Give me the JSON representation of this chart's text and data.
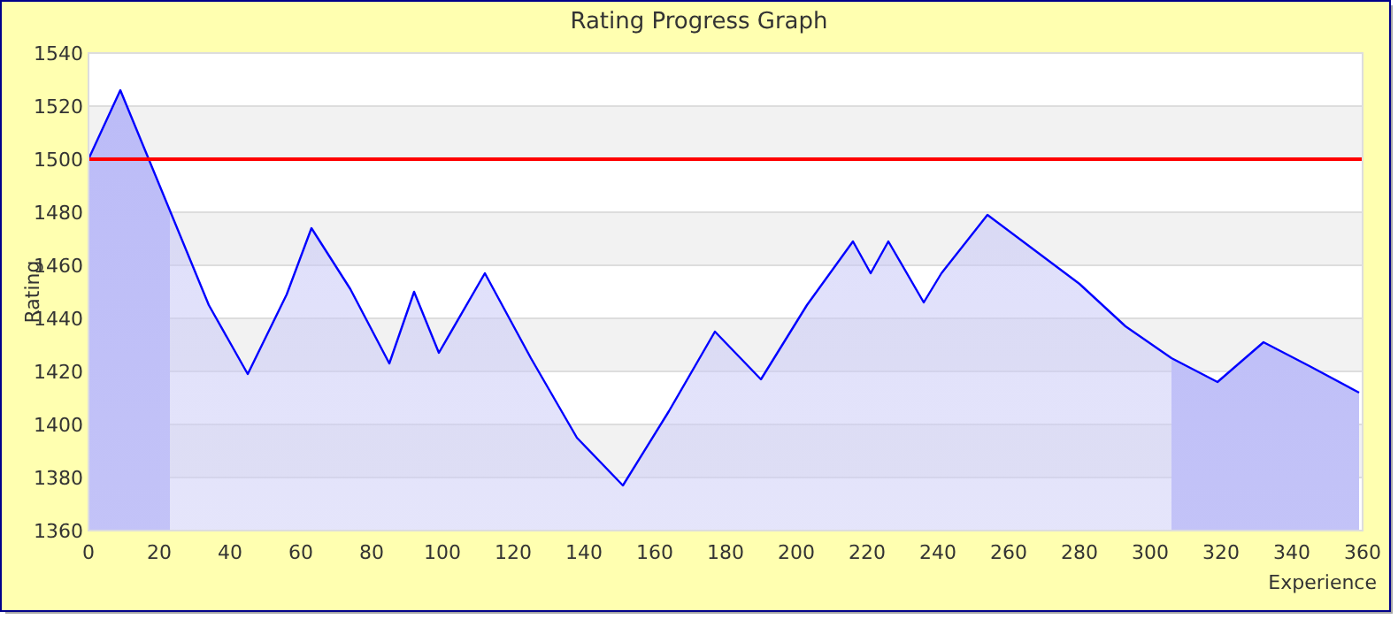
{
  "chart_data": {
    "type": "area",
    "title": "Rating Progress Graph",
    "xlabel": "Experience",
    "ylabel": "Rating",
    "x": [
      0,
      9,
      34,
      45,
      56,
      63,
      74,
      85,
      92,
      99,
      112,
      125,
      138,
      151,
      164,
      177,
      190,
      203,
      216,
      221,
      226,
      236,
      241,
      254,
      268,
      280,
      293,
      306,
      319,
      332,
      345,
      359
    ],
    "series": [
      {
        "color": "#0000ff",
        "values": [
          1500,
          1526,
          1445,
          1419,
          1449,
          1474,
          1451,
          1423,
          1450,
          1427,
          1457,
          1425,
          1395,
          1377,
          1405,
          1435,
          1417,
          1445,
          1469,
          1457,
          1469,
          1446,
          1457,
          1479,
          1465,
          1453,
          1437,
          1425,
          1416,
          1431,
          1422,
          1412
        ]
      }
    ],
    "xlim": [
      0,
      360
    ],
    "xticks": [
      0,
      20,
      40,
      60,
      80,
      100,
      120,
      140,
      160,
      180,
      200,
      220,
      240,
      260,
      280,
      300,
      320,
      340,
      360
    ],
    "ylim": [
      1360,
      1540
    ],
    "yticks": [
      1360,
      1380,
      1400,
      1420,
      1440,
      1460,
      1480,
      1500,
      1520,
      1540
    ],
    "grid": "y",
    "ref_lines": [
      {
        "axis": "y",
        "value": 1500,
        "color": "#ff0000"
      }
    ],
    "bands": [
      {
        "axis": "x",
        "from": 0,
        "to": 23,
        "color": "#b4b4f8"
      },
      {
        "axis": "x",
        "from": 306,
        "to": 359,
        "color": "#b4b4f8"
      }
    ]
  }
}
